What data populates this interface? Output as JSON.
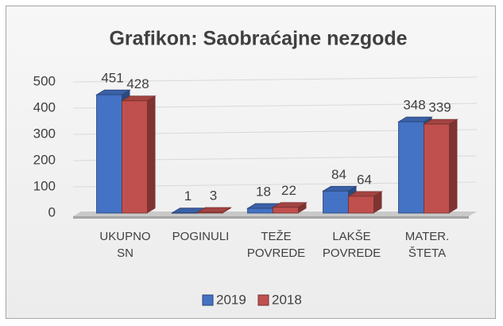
{
  "chart_data": {
    "type": "bar3d",
    "title": "Grafikon: Saobraćajne nezgode",
    "categories": [
      "UKUPNO SN",
      "POGINULI",
      "TEŽE POVREDE",
      "LAKŠE POVREDE",
      "MATER. ŠTETA"
    ],
    "series": [
      {
        "name": "2019",
        "color": "#4472c4",
        "values": [
          451,
          1,
          18,
          84,
          348
        ]
      },
      {
        "name": "2018",
        "color": "#c0504d",
        "values": [
          428,
          3,
          22,
          64,
          339
        ]
      }
    ],
    "ylim": [
      0,
      500
    ],
    "yticks": [
      0,
      100,
      200,
      300,
      400,
      500
    ],
    "grid": true,
    "legend": "bottom"
  }
}
